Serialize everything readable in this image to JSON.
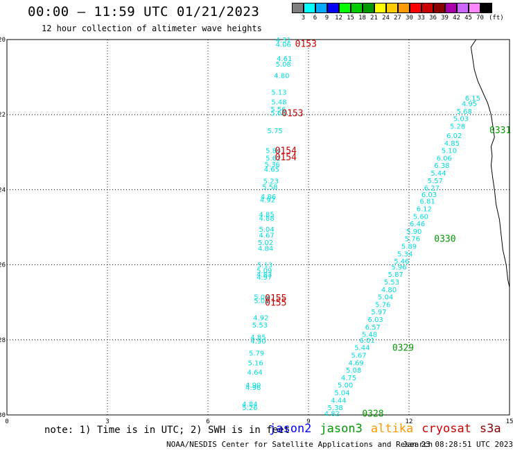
{
  "header": {
    "title": "00:00 – 11:59 UTC 01/21/2023",
    "subtitle": "12 hour collection of altimeter wave heights"
  },
  "legend": {
    "colors": [
      "#7f7f7f",
      "#00ffff",
      "#00aaff",
      "#0000ff",
      "#00ff00",
      "#00cc00",
      "#009900",
      "#ffff00",
      "#ffcc00",
      "#ff9900",
      "#ff0000",
      "#cc0000",
      "#880000",
      "#aa00aa",
      "#cc66ff",
      "#ff88ff",
      "#000000"
    ],
    "labels": [
      "3",
      "6",
      "9",
      "12",
      "15",
      "18",
      "21",
      "24",
      "27",
      "30",
      "33",
      "36",
      "39",
      "42",
      "45",
      "70"
    ],
    "units": "(ft)"
  },
  "map": {
    "lat_min": -30,
    "lat_max": -20,
    "lon_min": 0,
    "lon_max": 15,
    "y_ticks": [
      -20,
      -22,
      -24,
      -26,
      -28,
      -30
    ],
    "x_ticks": [
      0,
      3,
      6,
      9,
      12,
      15
    ],
    "coast": [
      [
        14.0,
        -20.0
      ],
      [
        13.85,
        -20.2
      ],
      [
        13.9,
        -20.5
      ],
      [
        13.95,
        -20.8
      ],
      [
        14.05,
        -21.1
      ],
      [
        14.2,
        -21.4
      ],
      [
        14.35,
        -21.7
      ],
      [
        14.45,
        -22.0
      ],
      [
        14.5,
        -22.3
      ],
      [
        14.55,
        -22.6
      ],
      [
        14.45,
        -22.85
      ],
      [
        14.48,
        -23.1
      ],
      [
        14.45,
        -23.35
      ],
      [
        14.5,
        -23.7
      ],
      [
        14.55,
        -24.0
      ],
      [
        14.6,
        -24.4
      ],
      [
        14.7,
        -24.8
      ],
      [
        14.75,
        -25.2
      ],
      [
        14.8,
        -25.6
      ],
      [
        14.9,
        -26.0
      ],
      [
        14.95,
        -26.4
      ],
      [
        15.0,
        -26.6
      ]
    ]
  },
  "tracks": [
    {
      "mission": "cryosat",
      "color": "#00dddd",
      "points": [
        [
          8.25,
          -20.0,
          "4.31"
        ],
        [
          8.25,
          -20.12,
          "4.06"
        ],
        [
          8.28,
          -20.5,
          "4.61"
        ],
        [
          8.25,
          -20.65,
          "5.08"
        ],
        [
          8.2,
          -20.95,
          "4.80"
        ],
        [
          8.12,
          -21.4,
          "5.13"
        ],
        [
          8.12,
          -21.65,
          "5.48"
        ],
        [
          8.1,
          -21.85,
          "5.56"
        ],
        [
          8.1,
          -21.95,
          "5.68"
        ],
        [
          8.0,
          -22.42,
          "5.75"
        ],
        [
          7.95,
          -22.95,
          "5.84"
        ],
        [
          7.95,
          -23.15,
          "5.62"
        ],
        [
          7.92,
          -23.32,
          "5.36"
        ],
        [
          7.9,
          -23.45,
          "4.65"
        ],
        [
          7.88,
          -23.76,
          "5.23"
        ],
        [
          7.85,
          -23.92,
          "5.58"
        ],
        [
          7.8,
          -24.18,
          "4.86"
        ],
        [
          7.78,
          -24.26,
          "4.92"
        ],
        [
          7.75,
          -24.65,
          "4.85"
        ],
        [
          7.75,
          -24.75,
          "4.88"
        ],
        [
          7.75,
          -25.05,
          "5.04"
        ],
        [
          7.75,
          -25.2,
          "4.67"
        ],
        [
          7.72,
          -25.4,
          "5.02"
        ],
        [
          7.72,
          -25.55,
          "4.84"
        ],
        [
          7.7,
          -26.0,
          "5.13"
        ],
        [
          7.68,
          -26.15,
          "5.09"
        ],
        [
          7.68,
          -26.25,
          "4.83"
        ],
        [
          7.68,
          -26.32,
          "4.97"
        ],
        [
          7.6,
          -26.85,
          "5.06"
        ],
        [
          7.6,
          -26.95,
          "5.01"
        ],
        [
          7.58,
          -27.4,
          "4.92"
        ],
        [
          7.55,
          -27.6,
          "5.53"
        ],
        [
          7.5,
          -27.92,
          "4.85"
        ],
        [
          7.5,
          -28.02,
          "4.90"
        ],
        [
          7.45,
          -28.35,
          "5.79"
        ],
        [
          7.42,
          -28.6,
          "5.16"
        ],
        [
          7.4,
          -28.85,
          "4.64"
        ],
        [
          7.35,
          -29.2,
          "4.90"
        ],
        [
          7.35,
          -29.26,
          "4.96"
        ],
        [
          7.25,
          -29.7,
          "4.84"
        ],
        [
          7.25,
          -29.8,
          "5.26"
        ]
      ],
      "time_labels": [
        [
          8.6,
          -20.1,
          "0153"
        ],
        [
          8.2,
          -21.95,
          "0153"
        ],
        [
          8.0,
          -22.95,
          "0154"
        ],
        [
          8.0,
          -23.12,
          "0154"
        ],
        [
          7.7,
          -26.88,
          "0155"
        ],
        [
          7.7,
          -27.0,
          "0155"
        ]
      ]
    },
    {
      "mission": "jason3",
      "color": "#00dddd",
      "points": [
        [
          13.9,
          -21.55,
          "6.15"
        ],
        [
          13.8,
          -21.7,
          "4.95"
        ],
        [
          13.65,
          -21.9,
          "5.68"
        ],
        [
          13.55,
          -22.1,
          "5.03"
        ],
        [
          13.45,
          -22.3,
          "5.28"
        ],
        [
          13.35,
          -22.55,
          "6.02"
        ],
        [
          13.28,
          -22.75,
          "4.85"
        ],
        [
          13.2,
          -22.95,
          "5.10"
        ],
        [
          13.05,
          -23.15,
          "6.06"
        ],
        [
          12.98,
          -23.35,
          "6.38"
        ],
        [
          12.88,
          -23.55,
          "5.44"
        ],
        [
          12.78,
          -23.75,
          "5.57"
        ],
        [
          12.68,
          -23.95,
          "6.27"
        ],
        [
          12.6,
          -24.12,
          "6.03"
        ],
        [
          12.55,
          -24.3,
          "6.81"
        ],
        [
          12.45,
          -24.5,
          "6.12"
        ],
        [
          12.35,
          -24.7,
          "5.60"
        ],
        [
          12.25,
          -24.9,
          "6.46"
        ],
        [
          12.15,
          -25.1,
          "5.90"
        ],
        [
          12.1,
          -25.3,
          "5.76"
        ],
        [
          12.0,
          -25.5,
          "5.89"
        ],
        [
          11.88,
          -25.7,
          "5.34"
        ],
        [
          11.78,
          -25.9,
          "5.46"
        ],
        [
          11.7,
          -26.05,
          "5.96"
        ],
        [
          11.6,
          -26.25,
          "5.87"
        ],
        [
          11.48,
          -26.45,
          "5.53"
        ],
        [
          11.4,
          -26.65,
          "4.80"
        ],
        [
          11.3,
          -26.85,
          "5.04"
        ],
        [
          11.22,
          -27.05,
          "5.76"
        ],
        [
          11.1,
          -27.25,
          "5.97"
        ],
        [
          11.0,
          -27.45,
          "6.03"
        ],
        [
          10.92,
          -27.65,
          "6.57"
        ],
        [
          10.82,
          -27.85,
          "5.48"
        ],
        [
          10.75,
          -28.0,
          "6.01"
        ],
        [
          10.6,
          -28.2,
          "5.44"
        ],
        [
          10.5,
          -28.4,
          "5.67"
        ],
        [
          10.42,
          -28.6,
          "4.69"
        ],
        [
          10.35,
          -28.8,
          "5.08"
        ],
        [
          10.2,
          -29.0,
          "4.75"
        ],
        [
          10.1,
          -29.2,
          "5.00"
        ],
        [
          10.0,
          -29.4,
          "5.04"
        ],
        [
          9.9,
          -29.6,
          "4.44"
        ],
        [
          9.8,
          -29.8,
          "5.38"
        ],
        [
          9.7,
          -29.95,
          "4.82"
        ]
      ],
      "time_labels": [
        [
          14.4,
          -22.4,
          "0331"
        ],
        [
          12.75,
          -25.3,
          "0330"
        ],
        [
          11.5,
          -28.2,
          "0329"
        ],
        [
          10.6,
          -29.95,
          "0328"
        ]
      ]
    }
  ],
  "note": "note: 1) Time is in UTC; 2) SWH is in feet",
  "missions": [
    {
      "name": "jason2",
      "color": "#0000ff"
    },
    {
      "name": "jason3",
      "color": "#009900"
    },
    {
      "name": "altika",
      "color": "#ff9900"
    },
    {
      "name": "cryosat",
      "color": "#cc0000"
    },
    {
      "name": "s3a",
      "color": "#880000"
    }
  ],
  "credit": "NOAA/NESDIS Center for Satellite Applications and Research",
  "generated": "Jan 23 08:28:51 UTC 2023"
}
